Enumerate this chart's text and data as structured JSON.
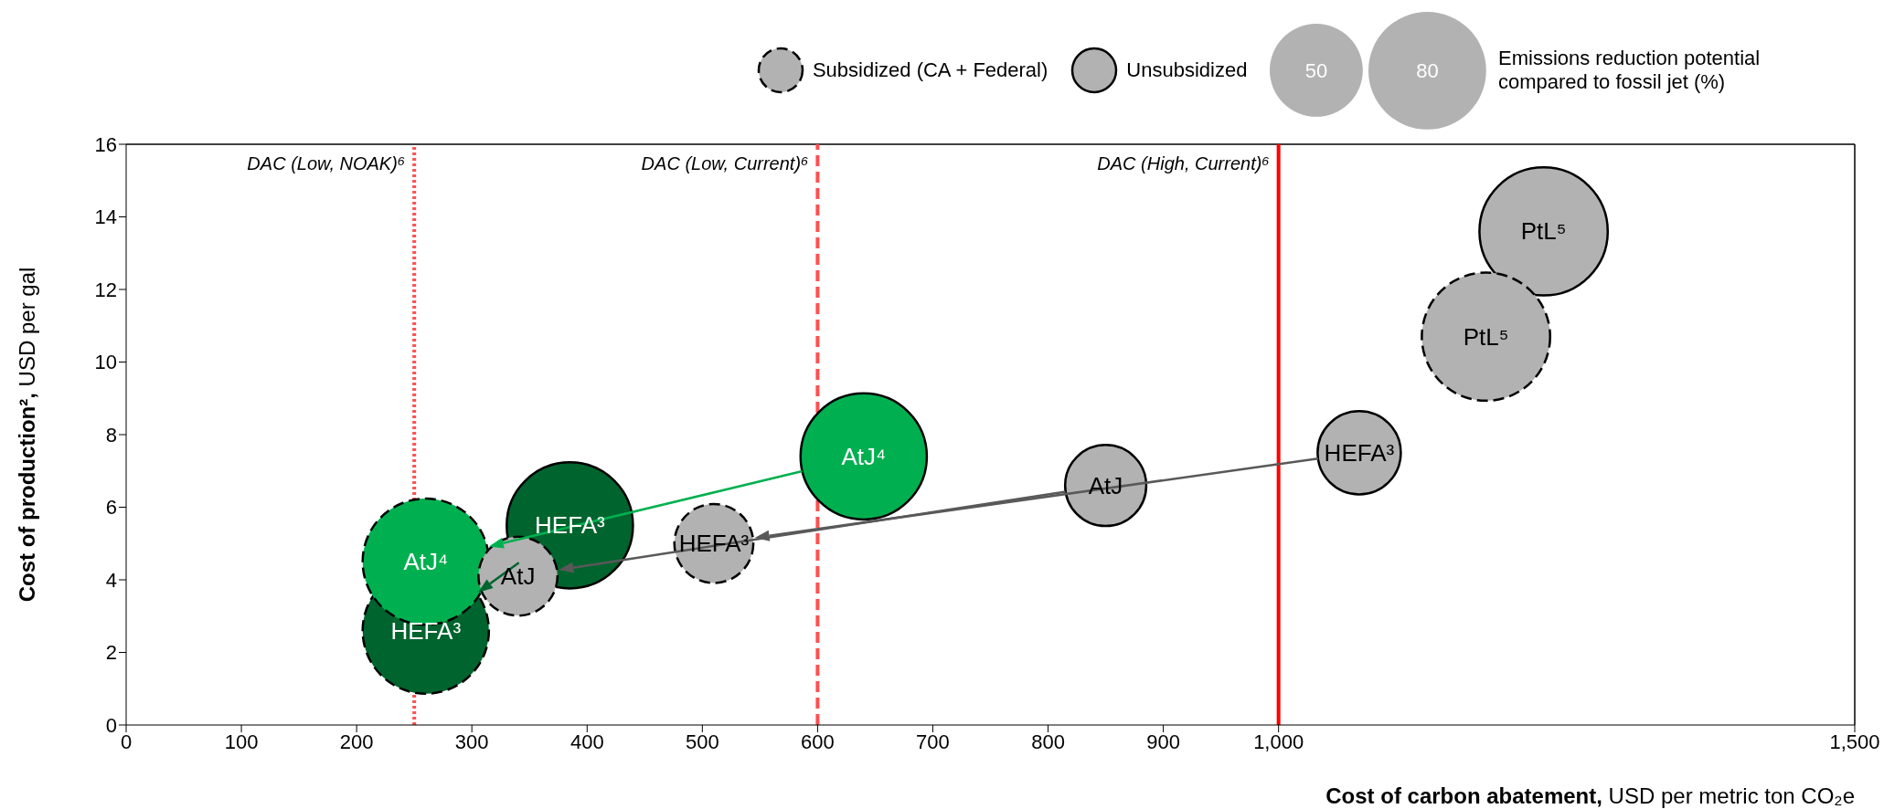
{
  "chart_data": {
    "type": "bubble",
    "xlabel": "Cost of carbon abatement, USD per metric ton CO₂e",
    "ylabel": "Cost of production², USD per gal",
    "legend_title": "Emissions reduction potential compared to fossil jet (%)",
    "legend": "top right",
    "size_legend": [
      50,
      80
    ],
    "xlim": [
      0,
      1500
    ],
    "xticks": [
      0,
      100,
      200,
      300,
      400,
      500,
      600,
      700,
      800,
      900,
      {
        "value": 1000,
        "label": "1,000"
      },
      {
        "value": 1500,
        "label": "1,500"
      }
    ],
    "ylim": [
      0,
      16
    ],
    "yticks": [
      0,
      2,
      4,
      6,
      8,
      10,
      12,
      14,
      16
    ],
    "series": [
      {
        "name": "Unsubsidized",
        "line_style": "solid",
        "x": [
          1230,
          385,
          640,
          1070,
          850
        ],
        "values": [
          13.6,
          5.5,
          7.4,
          7.5,
          6.6
        ],
        "sizes": [
          95,
          92,
          92,
          40,
          38
        ],
        "colors": [
          "#b2b2b2",
          "#00642e",
          "#00b050",
          "#b2b2b2",
          "#b2b2b2"
        ]
      },
      {
        "name": "Subsidized (CA + Federal)",
        "line_style": "dashed",
        "x": [
          1180,
          260,
          260,
          510,
          340
        ],
        "values": [
          10.7,
          2.6,
          4.5,
          5.0,
          4.1
        ],
        "sizes": [
          95,
          92,
          92,
          36,
          36
        ],
        "colors": [
          "#b2b2b2",
          "#00642e",
          "#00b050",
          "#b2b2b2",
          "#b2b2b2"
        ]
      }
    ],
    "ref_lines": [
      {
        "axis": "x",
        "value": 250,
        "label": "DAC (Low, NOAK)⁶",
        "color": "#ff5050",
        "line_style": "dotted"
      },
      {
        "axis": "x",
        "value": 600,
        "label": "DAC (Low, Current)⁶",
        "color": "#ff5050",
        "line_style": "dashed"
      },
      {
        "axis": "x",
        "value": 1000,
        "label": "DAC (High, Current)⁶",
        "color": "#ff0000",
        "line_style": "solid"
      }
    ],
    "annotations": [
      {
        "text": "PtL⁵",
        "x": 1230,
        "y": 13.6
      },
      {
        "text": "AtJ⁴",
        "x": 640,
        "y": 7.4
      },
      {
        "text": "HEFA³",
        "x": 385,
        "y": 5.5
      },
      {
        "text": "HEFA³",
        "x": 1070,
        "y": 7.5
      },
      {
        "text": "AtJ",
        "x": 850,
        "y": 6.6
      },
      {
        "text": "PtL⁵",
        "x": 1180,
        "y": 10.7
      },
      {
        "text": "HEFA³",
        "x": 260,
        "y": 2.6
      },
      {
        "text": "AtJ⁴",
        "x": 260,
        "y": 4.5
      },
      {
        "text": "HEFA³",
        "x": 510,
        "y": 5.0
      },
      {
        "text": "AtJ",
        "x": 340,
        "y": 4.1
      }
    ]
  }
}
